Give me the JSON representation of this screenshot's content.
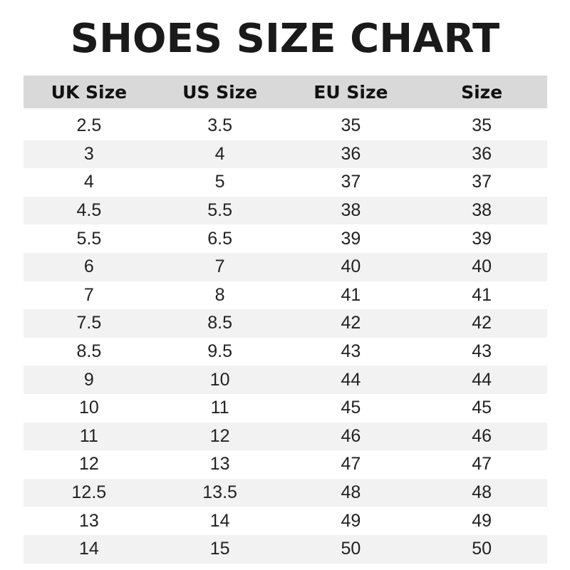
{
  "title": "SHOES SIZE CHART",
  "headers": [
    "UK Size",
    "US Size",
    "EU Size",
    "Size"
  ],
  "rows": [
    [
      "2.5",
      "3.5",
      "35",
      "35"
    ],
    [
      "3",
      "4",
      "36",
      "36"
    ],
    [
      "4",
      "5",
      "37",
      "37"
    ],
    [
      "4.5",
      "5.5",
      "38",
      "38"
    ],
    [
      "5.5",
      "6.5",
      "39",
      "39"
    ],
    [
      "6",
      "7",
      "40",
      "40"
    ],
    [
      "7",
      "8",
      "41",
      "41"
    ],
    [
      "7.5",
      "8.5",
      "42",
      "42"
    ],
    [
      "8.5",
      "9.5",
      "43",
      "43"
    ],
    [
      "9",
      "10",
      "44",
      "44"
    ],
    [
      "10",
      "11",
      "45",
      "45"
    ],
    [
      "11",
      "12",
      "46",
      "46"
    ],
    [
      "12",
      "13",
      "47",
      "47"
    ],
    [
      "12.5",
      "13.5",
      "48",
      "48"
    ],
    [
      "13",
      "14",
      "49",
      "49"
    ],
    [
      "14",
      "15",
      "50",
      "50"
    ]
  ],
  "colors": {
    "header_bg": "#d9d9d9",
    "stripe_bg": "#f2f2f2"
  }
}
